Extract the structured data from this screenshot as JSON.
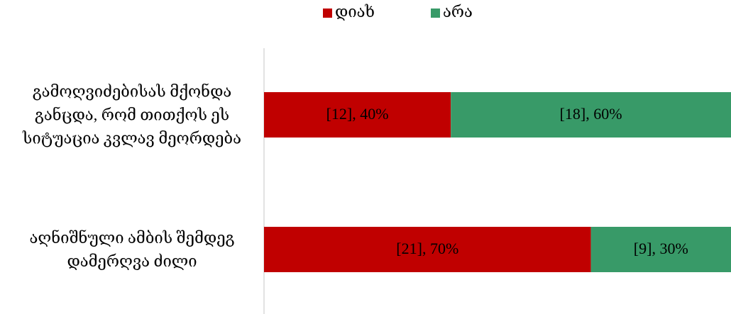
{
  "chart_data": {
    "type": "stacked_bar_horizontal",
    "categories": [
      "გამოღვიძებისას მქონდა განცდა, რომ თითქოს ეს სიტუაცია კვლავ მეორდება",
      "აღნიშნული ამბის შემდეგ დამერღვა ძილი"
    ],
    "series": [
      {
        "name": "დიახ",
        "color": "#c00000",
        "values": [
          40,
          70
        ],
        "value_labels": [
          "[12], 40%",
          "[21], 70%"
        ]
      },
      {
        "name": "არა",
        "color": "#389a68",
        "values": [
          60,
          30
        ],
        "value_labels": [
          "[18], 60%",
          "[9], 30%"
        ]
      }
    ],
    "xlim": [
      0,
      100
    ],
    "legend": "top"
  }
}
